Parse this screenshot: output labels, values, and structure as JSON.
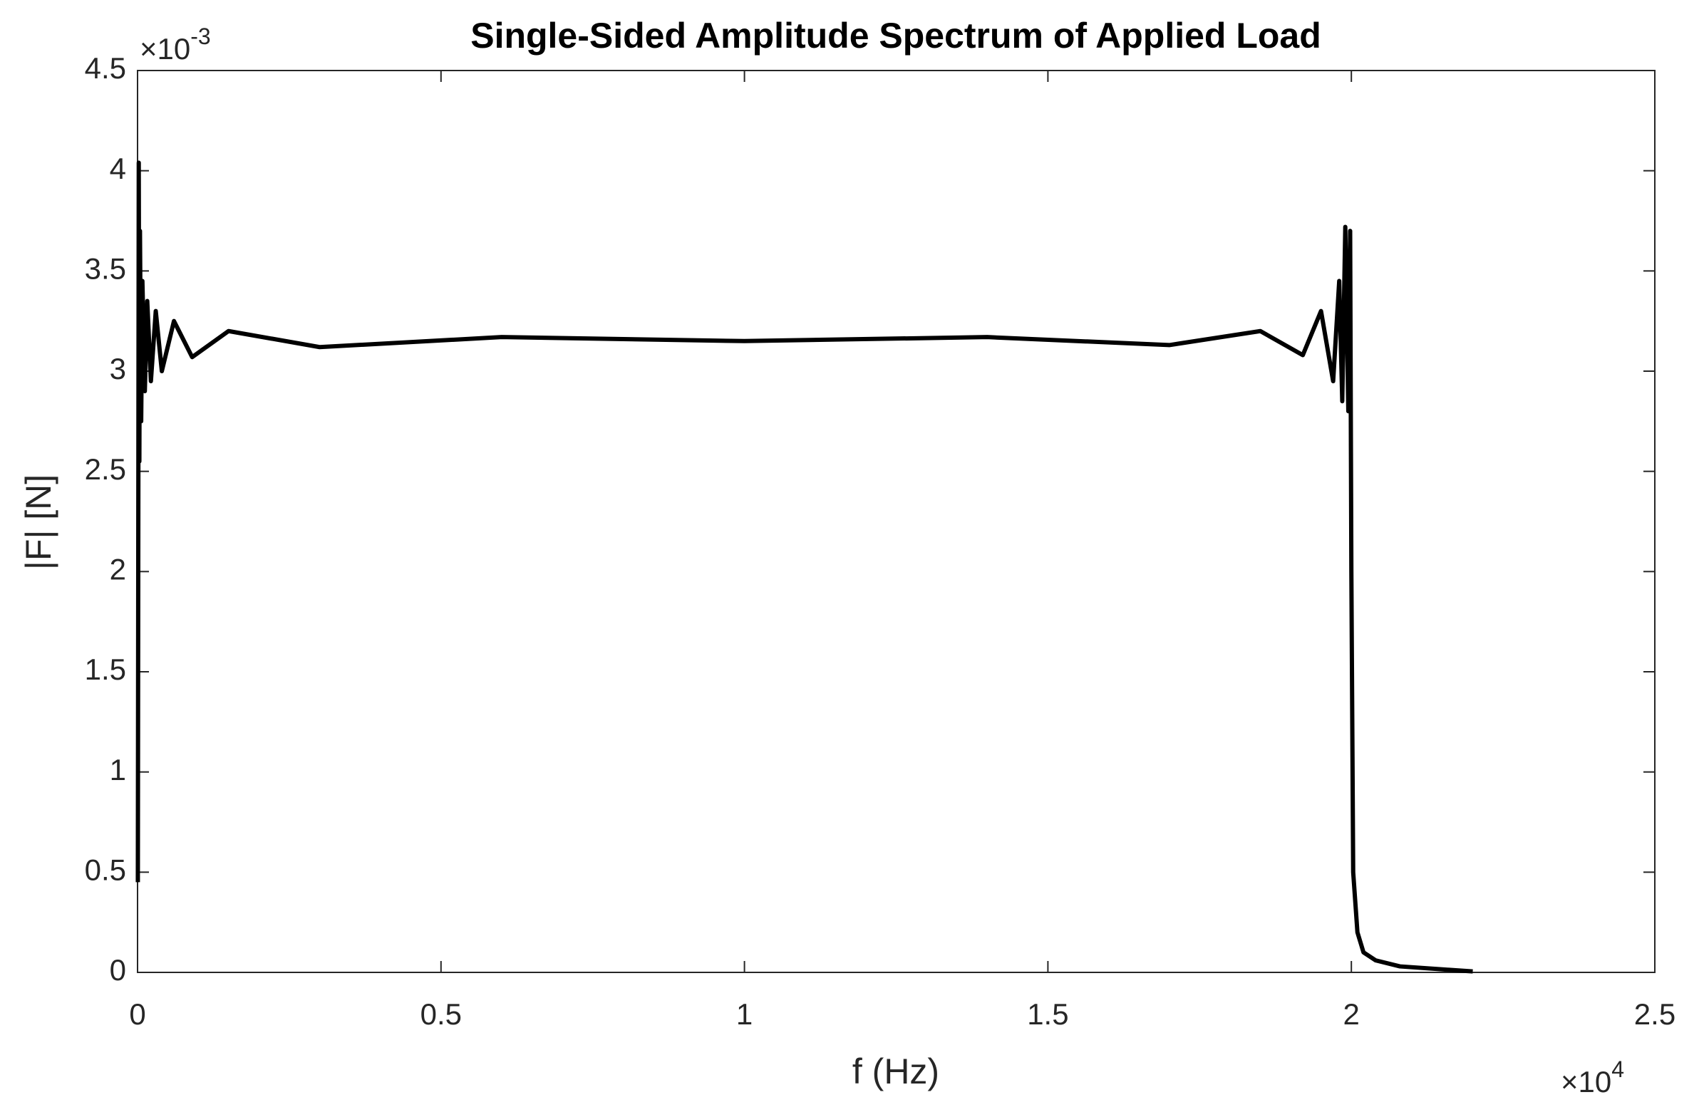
{
  "chart_data": {
    "type": "line",
    "title": "Single-Sided Amplitude Spectrum of Applied Load",
    "x_label": "f (Hz)",
    "y_label": "|F| [N]",
    "x_multiplier": {
      "base": "×10",
      "exponent": "4"
    },
    "y_multiplier": {
      "base": "×10",
      "exponent": "-3"
    },
    "xlim": [
      0,
      2.5
    ],
    "xticks": [
      0,
      0.5,
      1,
      1.5,
      2,
      2.5
    ],
    "ylim": [
      0,
      4.5
    ],
    "yticks": [
      0,
      0.5,
      1,
      1.5,
      2,
      2.5,
      3,
      3.5,
      4,
      4.5
    ],
    "grid": false,
    "series": [
      {
        "color": "#000000",
        "x": [
          0.0005,
          0.002,
          0.003,
          0.004,
          0.006,
          0.008,
          0.012,
          0.016,
          0.022,
          0.03,
          0.04,
          0.06,
          0.09,
          0.15,
          0.3,
          0.6,
          1.0,
          1.4,
          1.7,
          1.85,
          1.92,
          1.95,
          1.97,
          1.98,
          1.985,
          1.99,
          1.995,
          1.998,
          2.0,
          2.003,
          2.01,
          2.02,
          2.04,
          2.08,
          2.15,
          2.2
        ],
        "values": [
          0.45,
          4.04,
          2.55,
          3.7,
          2.75,
          3.45,
          2.9,
          3.35,
          2.95,
          3.3,
          3.0,
          3.25,
          3.07,
          3.2,
          3.12,
          3.17,
          3.15,
          3.17,
          3.13,
          3.2,
          3.08,
          3.3,
          2.95,
          3.45,
          2.85,
          3.72,
          2.8,
          3.7,
          2.0,
          0.5,
          0.2,
          0.1,
          0.06,
          0.03,
          0.015,
          0.005
        ]
      }
    ]
  }
}
